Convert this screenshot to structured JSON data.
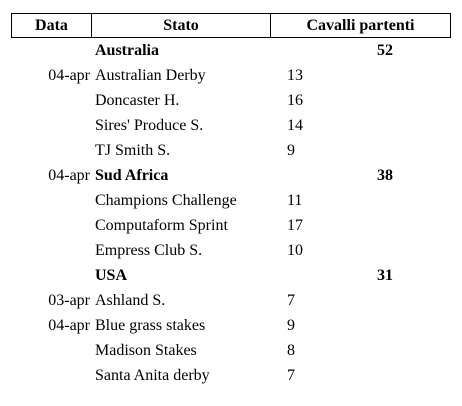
{
  "header": {
    "col_date": "Data",
    "col_stato": "Stato",
    "col_cavalli": "Cavalli partenti"
  },
  "rows": [
    {
      "type": "group",
      "date": "",
      "name": "Australia",
      "num": "",
      "total": "52"
    },
    {
      "type": "item",
      "date": "04-apr",
      "name": "Australian Derby",
      "num": "13",
      "total": ""
    },
    {
      "type": "item",
      "date": "",
      "name": "Doncaster H.",
      "num": "16",
      "total": ""
    },
    {
      "type": "item",
      "date": "",
      "name": "Sires' Produce S.",
      "num": "14",
      "total": ""
    },
    {
      "type": "item",
      "date": "",
      "name": "TJ Smith S.",
      "num": "9",
      "total": ""
    },
    {
      "type": "group",
      "date": "04-apr",
      "name": "Sud Africa",
      "num": "",
      "total": "38"
    },
    {
      "type": "item",
      "date": "",
      "name": "Champions Challenge",
      "num": "11",
      "total": ""
    },
    {
      "type": "item",
      "date": "",
      "name": "Computaform Sprint",
      "num": "17",
      "total": ""
    },
    {
      "type": "item",
      "date": "",
      "name": "Empress Club S.",
      "num": "10",
      "total": ""
    },
    {
      "type": "group",
      "date": "",
      "name": "USA",
      "num": "",
      "total": "31"
    },
    {
      "type": "item",
      "date": "03-apr",
      "name": "Ashland S.",
      "num": "7",
      "total": ""
    },
    {
      "type": "item",
      "date": "04-apr",
      "name": "Blue grass stakes",
      "num": "9",
      "total": ""
    },
    {
      "type": "item",
      "date": "",
      "name": "Madison Stakes",
      "num": "8",
      "total": ""
    },
    {
      "type": "item",
      "date": "",
      "name": "Santa Anita derby",
      "num": "7",
      "total": ""
    }
  ]
}
